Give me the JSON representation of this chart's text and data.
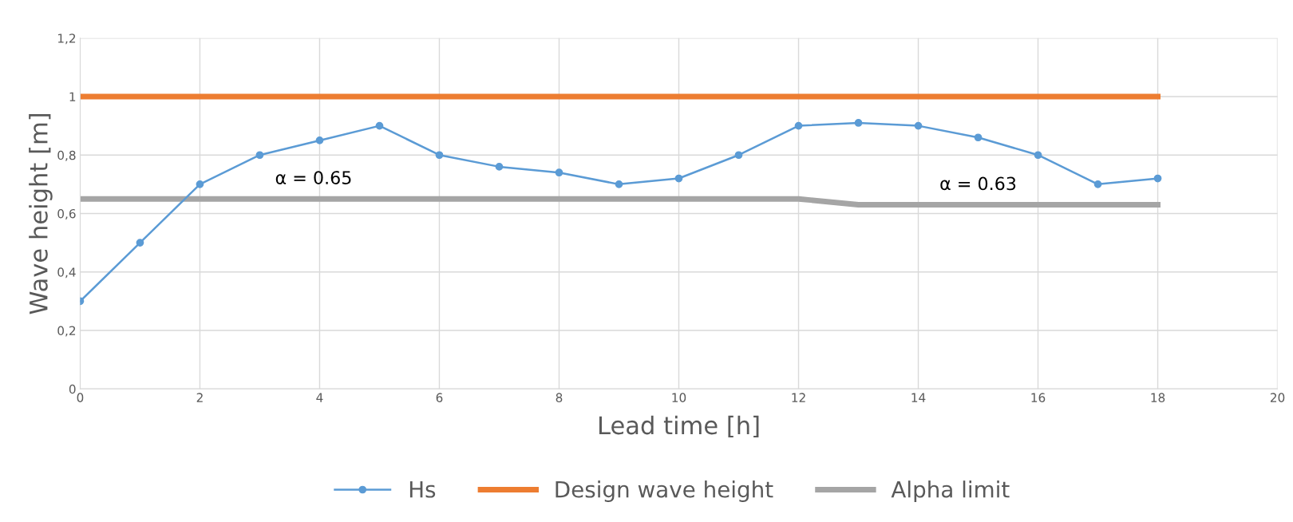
{
  "chart_data": {
    "type": "line",
    "xlabel": "Lead time [h]",
    "ylabel": "Wave height [m]",
    "x": [
      0,
      1,
      2,
      3,
      4,
      5,
      6,
      7,
      8,
      9,
      10,
      11,
      12,
      13,
      14,
      15,
      16,
      17,
      18
    ],
    "series": [
      {
        "name": "Hs",
        "color": "#5b9bd5",
        "marker": "circle",
        "values": [
          0.3,
          0.5,
          0.7,
          0.8,
          0.85,
          0.9,
          0.8,
          0.76,
          0.74,
          0.7,
          0.72,
          0.8,
          0.9,
          0.91,
          0.9,
          0.86,
          0.8,
          0.7,
          0.72
        ]
      },
      {
        "name": "Design wave height",
        "color": "#ed7d31",
        "marker": "none",
        "values": [
          1,
          1,
          1,
          1,
          1,
          1,
          1,
          1,
          1,
          1,
          1,
          1,
          1,
          1,
          1,
          1,
          1,
          1,
          1
        ]
      },
      {
        "name": "Alpha limit",
        "color": "#a5a5a5",
        "marker": "none",
        "values": [
          0.65,
          0.65,
          0.65,
          0.65,
          0.65,
          0.65,
          0.65,
          0.65,
          0.65,
          0.65,
          0.65,
          0.65,
          0.65,
          0.63,
          0.63,
          0.63,
          0.63,
          0.63,
          0.63
        ]
      }
    ],
    "xlim": [
      0,
      20
    ],
    "xticks": [
      0,
      2,
      4,
      6,
      8,
      10,
      12,
      14,
      16,
      18,
      20
    ],
    "ylim": [
      0,
      1.2
    ],
    "yticks": [
      {
        "value": 0,
        "label": "0"
      },
      {
        "value": 0.2,
        "label": "0,2"
      },
      {
        "value": 0.4,
        "label": "0,4"
      },
      {
        "value": 0.6,
        "label": "0,6"
      },
      {
        "value": 0.8,
        "label": "0,8"
      },
      {
        "value": 1,
        "label": "1"
      },
      {
        "value": 1.2,
        "label": "1,2"
      }
    ],
    "grid": true,
    "legend": "bottom",
    "line_style": "solid",
    "annotations": [
      {
        "text": "α = 0.65",
        "x": 3.9,
        "y": 0.65
      },
      {
        "text": "α = 0.63",
        "x": 15,
        "y": 0.63
      }
    ]
  }
}
